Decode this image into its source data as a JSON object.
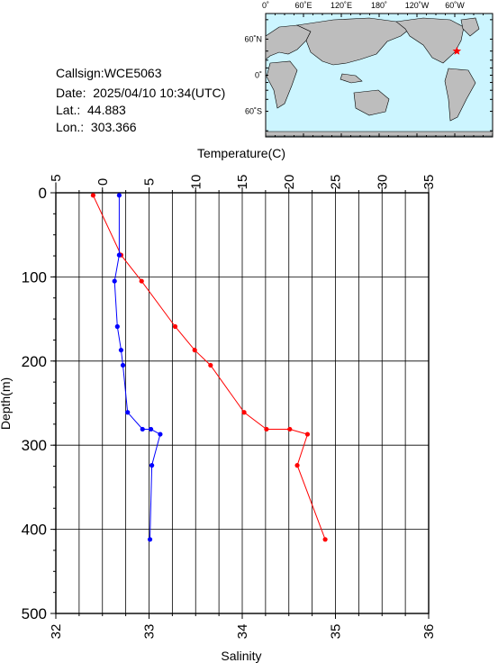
{
  "info": {
    "callsign": "Callsign:WCE5063",
    "date": "Date:  2025/04/10 10:34(UTC)",
    "lat": "Lat.:  44.883",
    "lon": "Lon.:  303.366"
  },
  "map": {
    "top_ticks": [
      "0˚",
      "60˚E",
      "120˚E",
      "180˚",
      "120˚W",
      "60˚W"
    ],
    "left_ticks": [
      "60˚N",
      "0˚",
      "60˚S"
    ],
    "ocean_color": "#ccf5ff",
    "land_color": "#bdbdbd",
    "marker_color": "#ff0000",
    "station": {
      "lat": 44.883,
      "lon": 303.366
    }
  },
  "chart_data": {
    "type": "line",
    "title": "",
    "ylabel": "Depth(m)",
    "ylim": [
      500,
      0
    ],
    "y_ticks": [
      "0",
      "100",
      "200",
      "300",
      "400",
      "500"
    ],
    "x_top": {
      "label": "Temperature(C)",
      "range": [
        -5,
        35
      ],
      "ticks": [
        "−5",
        "0",
        "5",
        "10",
        "15",
        "20",
        "25",
        "30",
        "35"
      ]
    },
    "x_bottom": {
      "label": "Salinity",
      "range": [
        32,
        36
      ],
      "ticks": [
        "32",
        "33",
        "34",
        "35",
        "36"
      ]
    },
    "grid": true,
    "series": [
      {
        "axis": "top",
        "color": "#ff0000",
        "points": [
          {
            "x": -1.0,
            "y": 3
          },
          {
            "x": 2.0,
            "y": 74
          },
          {
            "x": 4.2,
            "y": 105
          },
          {
            "x": 7.8,
            "y": 159
          },
          {
            "x": 9.9,
            "y": 187
          },
          {
            "x": 11.6,
            "y": 205
          },
          {
            "x": 15.2,
            "y": 261
          },
          {
            "x": 17.6,
            "y": 281
          },
          {
            "x": 20.1,
            "y": 281
          },
          {
            "x": 22.0,
            "y": 287
          },
          {
            "x": 20.9,
            "y": 324
          },
          {
            "x": 23.9,
            "y": 412
          }
        ]
      },
      {
        "axis": "bottom",
        "color": "#0000ff",
        "points": [
          {
            "x": 32.68,
            "y": 3
          },
          {
            "x": 32.68,
            "y": 74
          },
          {
            "x": 32.63,
            "y": 105
          },
          {
            "x": 32.66,
            "y": 159
          },
          {
            "x": 32.7,
            "y": 187
          },
          {
            "x": 32.72,
            "y": 205
          },
          {
            "x": 32.77,
            "y": 261
          },
          {
            "x": 32.93,
            "y": 281
          },
          {
            "x": 33.02,
            "y": 281
          },
          {
            "x": 33.12,
            "y": 287
          },
          {
            "x": 33.03,
            "y": 324
          },
          {
            "x": 33.01,
            "y": 412
          }
        ]
      }
    ]
  }
}
